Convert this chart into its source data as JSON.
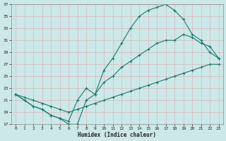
{
  "xlabel": "Humidex (Indice chaleur)",
  "bg_color": "#cce8e8",
  "grid_color": "#b0d8d8",
  "line_color": "#1a7a6e",
  "xlim": [
    -0.5,
    23.5
  ],
  "ylim": [
    17,
    37
  ],
  "xticks": [
    0,
    1,
    2,
    3,
    4,
    5,
    6,
    7,
    8,
    9,
    10,
    11,
    12,
    13,
    14,
    15,
    16,
    17,
    18,
    19,
    20,
    21,
    22,
    23
  ],
  "yticks": [
    17,
    19,
    21,
    23,
    25,
    27,
    29,
    31,
    33,
    35,
    37
  ],
  "line1_x": [
    0,
    1,
    2,
    3,
    4,
    5,
    6,
    7,
    8,
    9,
    10,
    11,
    12,
    13,
    14,
    15,
    16,
    17,
    18,
    19,
    20,
    21,
    22,
    23
  ],
  "line1_y": [
    22,
    21,
    20,
    19.5,
    18.5,
    18,
    17,
    17,
    21,
    22,
    26,
    28,
    30.5,
    33,
    35,
    36,
    36.5,
    37,
    36,
    34.5,
    32,
    31,
    29,
    28
  ],
  "line2_x": [
    0,
    1,
    2,
    3,
    4,
    5,
    6,
    7,
    8,
    9,
    10,
    11,
    12,
    13,
    14,
    15,
    16,
    17,
    18,
    19,
    20,
    21,
    22,
    23
  ],
  "line2_y": [
    22,
    21,
    20,
    19.5,
    18.5,
    18,
    17.5,
    21,
    23,
    22,
    24,
    25,
    26.5,
    27.5,
    28.5,
    29.5,
    30.5,
    31,
    31,
    32,
    31.5,
    30.5,
    30,
    28
  ],
  "line3_x": [
    0,
    1,
    2,
    3,
    4,
    5,
    6,
    7,
    8,
    9,
    10,
    11,
    12,
    13,
    14,
    15,
    16,
    17,
    18,
    19,
    20,
    21,
    22,
    23
  ],
  "line3_y": [
    22,
    21.5,
    21,
    20.5,
    20,
    19.5,
    19,
    19.5,
    20,
    20.5,
    21,
    21.5,
    22,
    22.5,
    23,
    23.5,
    24,
    24.5,
    25,
    25.5,
    26,
    26.5,
    27,
    27
  ]
}
